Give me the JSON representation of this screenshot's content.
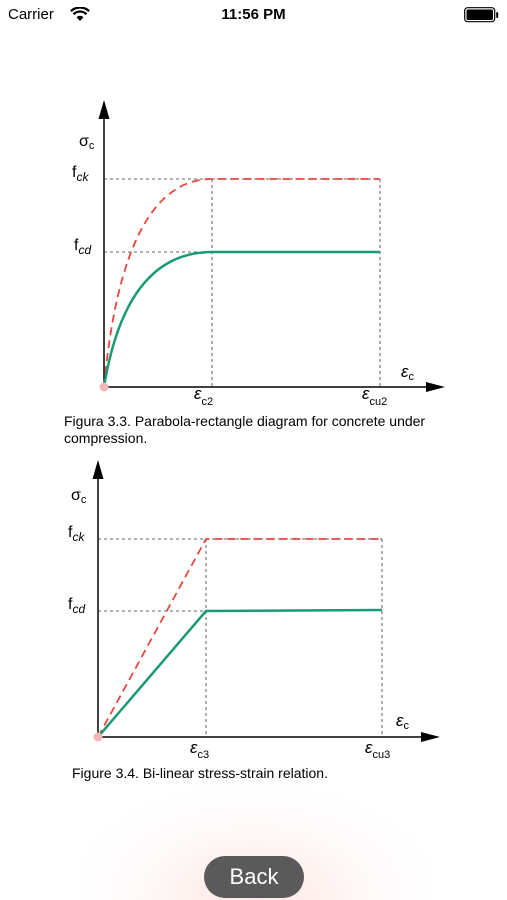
{
  "status_bar": {
    "carrier": "Carrier",
    "time": "11:56 PM",
    "wifi_icon": "wifi-icon",
    "battery_icon": "battery-icon"
  },
  "figures": [
    {
      "caption": "Figura 3.3. Parabola-rectangle diagram for concrete under compression.",
      "labels": {
        "y_axis": "σ",
        "y_axis_sub": "c",
        "f_top": "f",
        "f_top_sub": "ck",
        "f_mid": "f",
        "f_mid_sub": "cd",
        "x_axis": "ε",
        "x_axis_sub": "c",
        "eps_1": "ε",
        "eps_1_sub": "c2",
        "eps_2": "ε",
        "eps_2_sub": "cu2"
      },
      "colors": {
        "characteristic": "#e8463c",
        "design": "#1a9a76"
      }
    },
    {
      "caption": "Figure 3.4. Bi-linear stress-strain relation.",
      "labels": {
        "y_axis": "σ",
        "y_axis_sub": "c",
        "f_top": "f",
        "f_top_sub": "ck",
        "f_mid": "f",
        "f_mid_sub": "cd",
        "x_axis": "ε",
        "x_axis_sub": "c",
        "eps_1": "ε",
        "eps_1_sub": "c3",
        "eps_2": "ε",
        "eps_2_sub": "cu3"
      },
      "colors": {
        "characteristic": "#e8463c",
        "design": "#1a9a76"
      }
    }
  ],
  "back_button": {
    "label": "Back"
  }
}
